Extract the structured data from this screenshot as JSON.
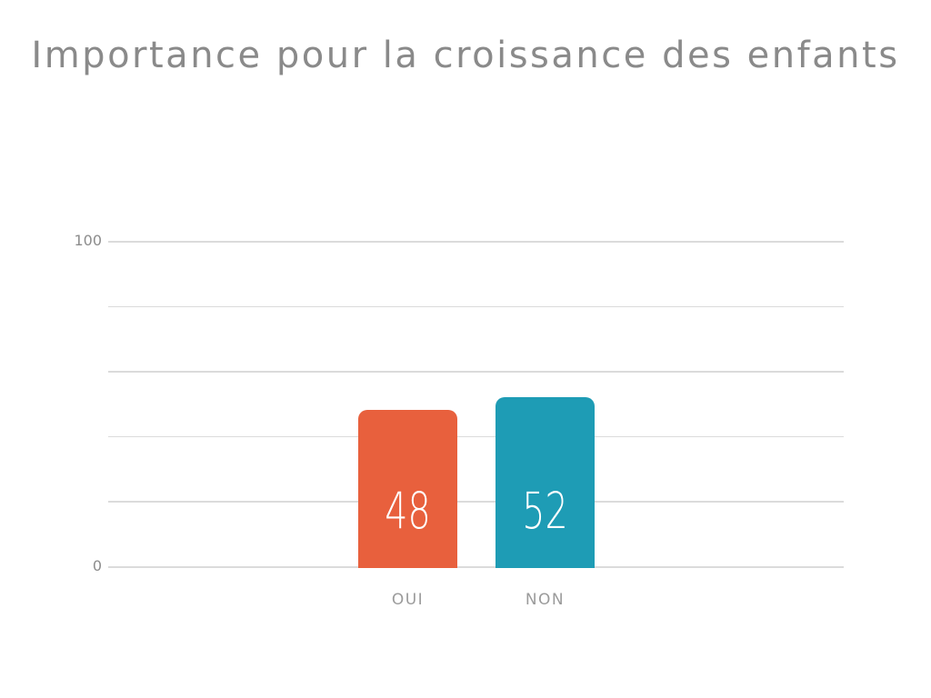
{
  "title": "Importance pour la croissance des enfants",
  "chart_data": {
    "type": "bar",
    "title": "Importance pour la croissance des enfants",
    "categories": [
      "OUI",
      "NON"
    ],
    "values": [
      48,
      52
    ],
    "bar_colors": [
      "#E8603D",
      "#1E9CB5"
    ],
    "value_label_color": "#FFFFFF",
    "xlabel": "",
    "ylabel": "",
    "ylim": [
      0,
      100
    ],
    "ytick_step": 20,
    "ytick_labels_shown": [
      "100",
      "0"
    ],
    "grid": true,
    "gridline_color": "#DBDBDB",
    "axis_tick_color": "#8C8C8C",
    "category_label_color": "#9B9B9B",
    "title_color": "#8A8A8A",
    "background": "#FFFFFF",
    "legend_position": "none"
  }
}
